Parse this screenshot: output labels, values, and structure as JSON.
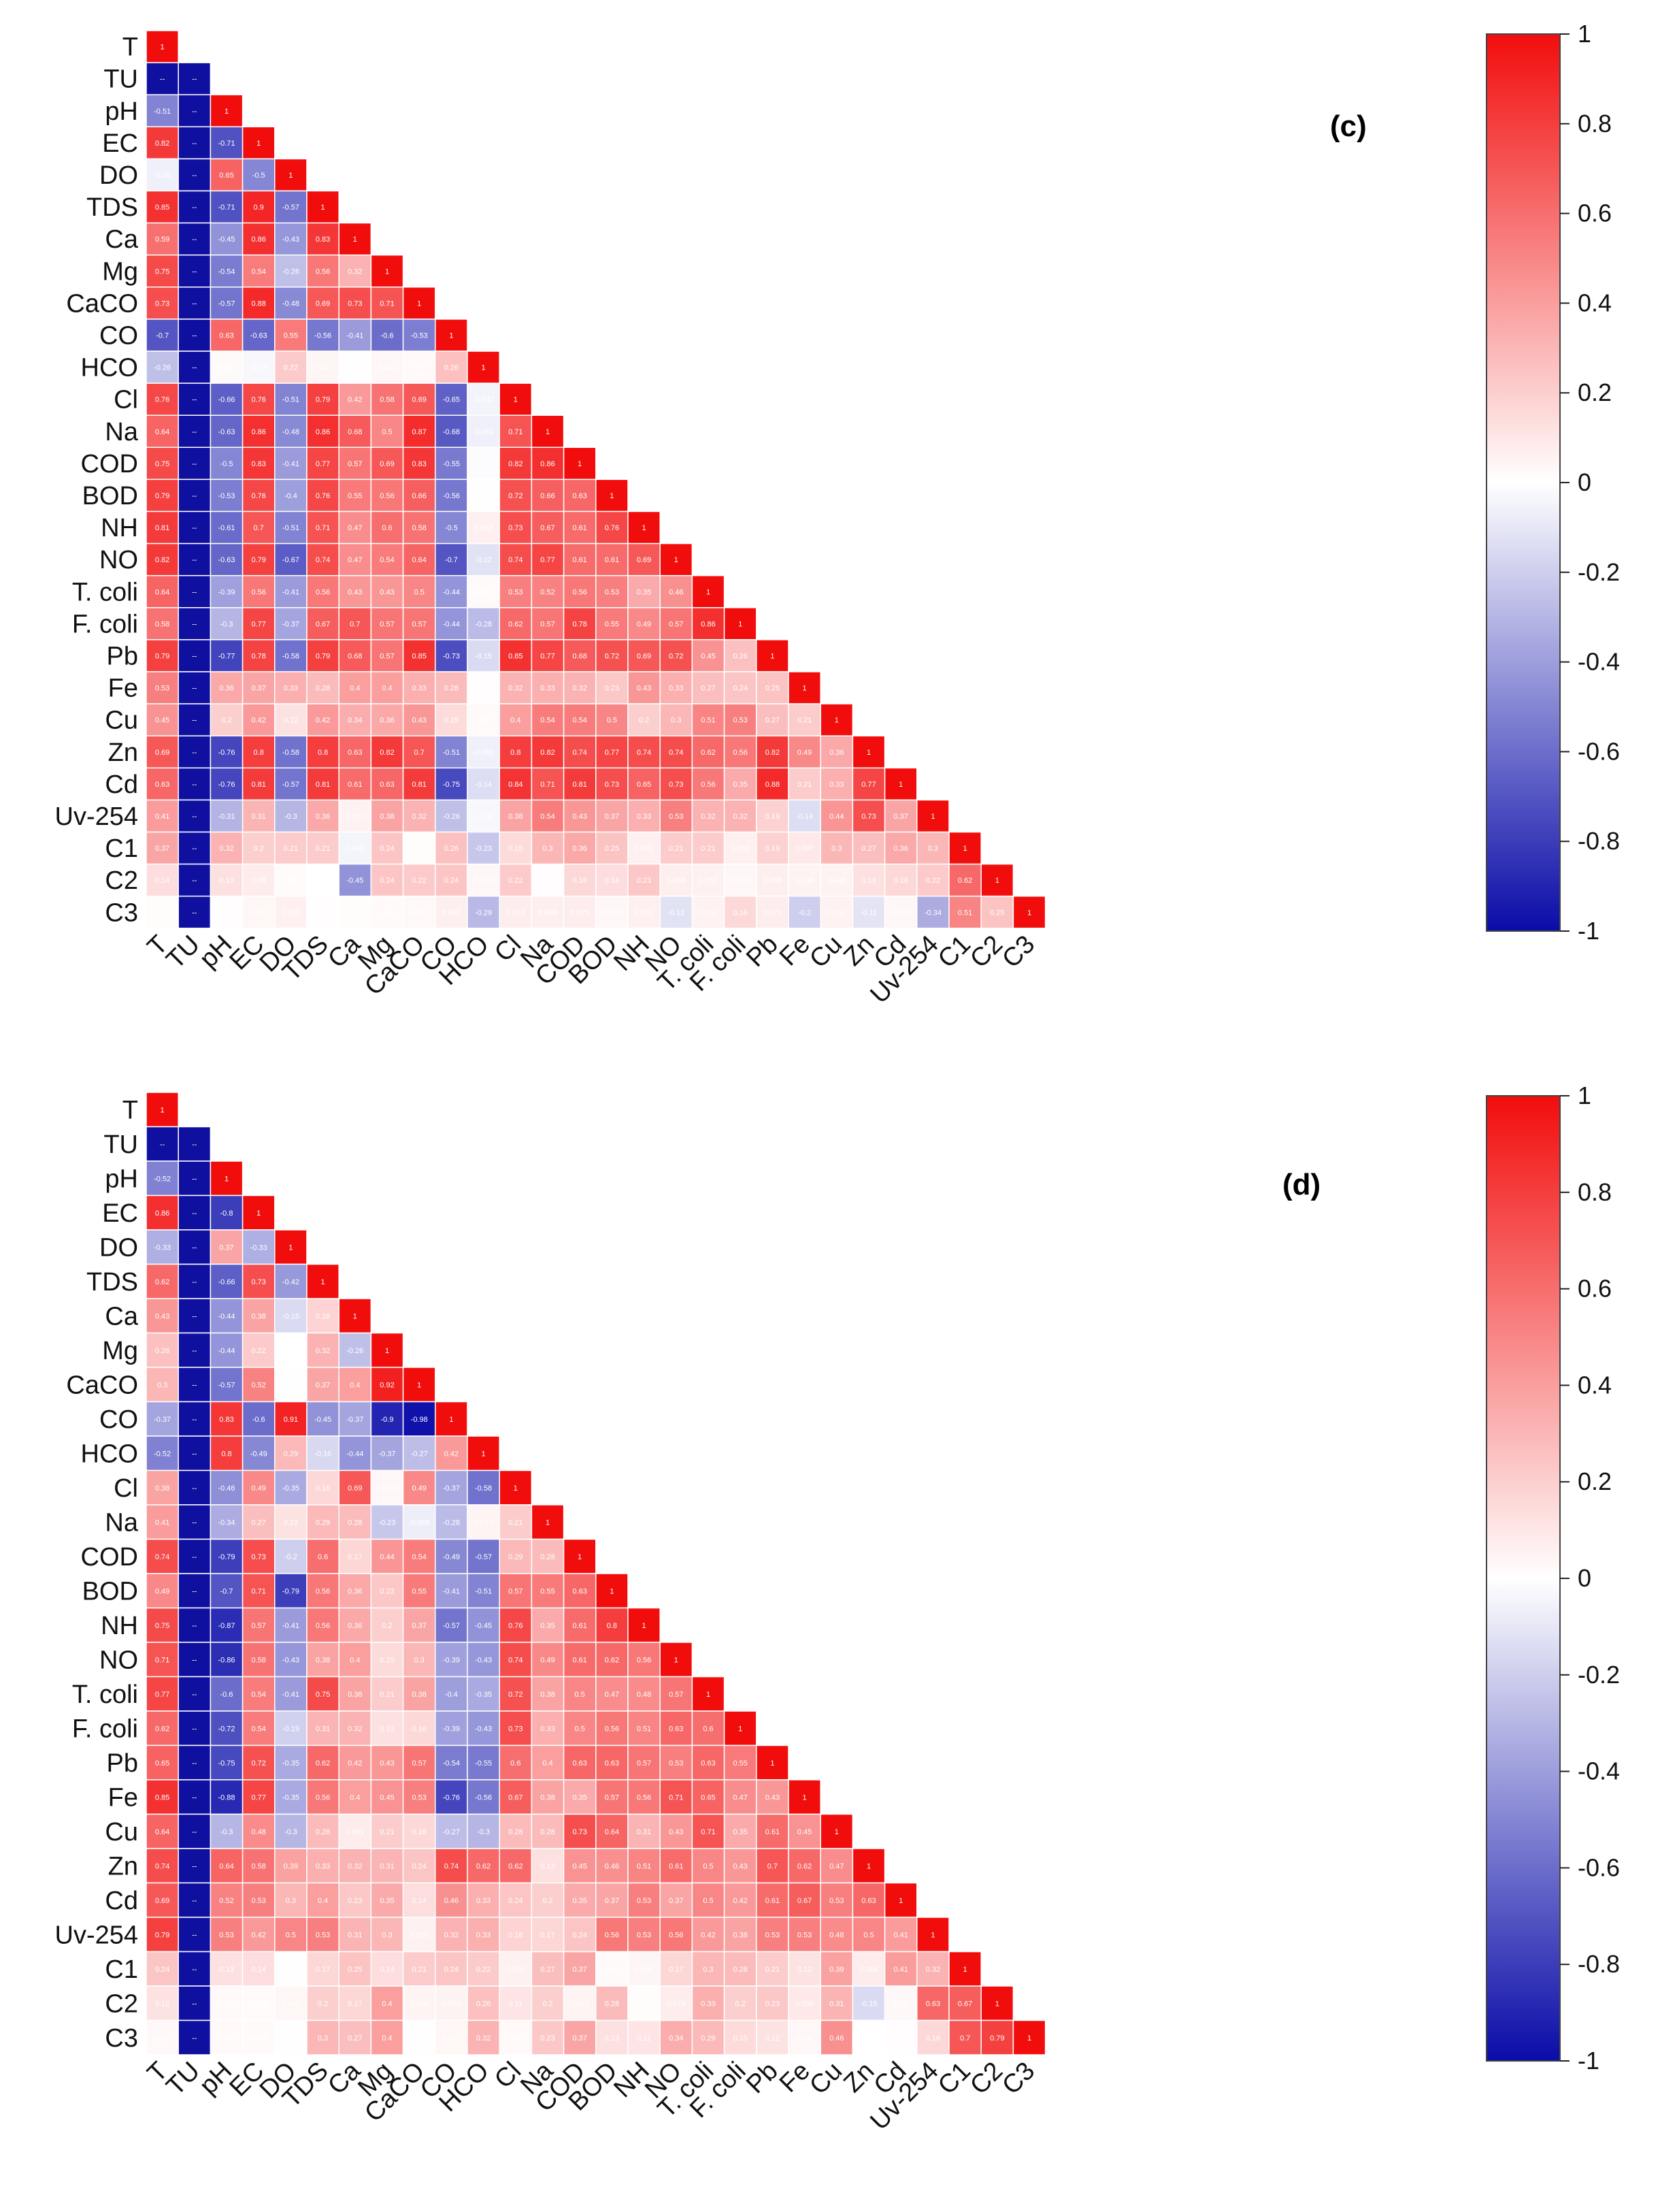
{
  "chart_data": [
    {
      "type": "heatmap",
      "title": "(c)",
      "matrix": "lower-triangular correlation",
      "variables": [
        "T",
        "TU",
        "pH",
        "EC",
        "DO",
        "TDS",
        "Ca",
        "Mg",
        "CaCO",
        "CO",
        "HCO",
        "Cl",
        "Na",
        "COD",
        "BOD",
        "NH",
        "NO",
        "T. coli",
        "F. coli",
        "Pb",
        "Fe",
        "Cu",
        "Zn",
        "Cd",
        "Uv-254",
        "C1",
        "C2",
        "C3"
      ],
      "x_tick_labels": [
        "T",
        "TU",
        "pH",
        "EC",
        "DO",
        "TDS",
        "Ca",
        "Mg",
        "CaCO",
        "CO",
        "HCO",
        "Cl",
        "Na",
        "COD",
        "BOD",
        "NH",
        "NO",
        "T. coli",
        "F. coli",
        "Pb",
        "Fe",
        "Cu",
        "Zn",
        "Cd",
        "Uv-254",
        "C1",
        "C2",
        "C3"
      ],
      "values": [
        [
          1
        ],
        [
          null,
          null
        ],
        [
          -0.51,
          null,
          1
        ],
        [
          0.82,
          null,
          -0.71,
          1
        ],
        [
          -0.06,
          null,
          0.65,
          -0.5,
          1
        ],
        [
          0.85,
          null,
          -0.71,
          0.9,
          -0.57,
          1
        ],
        [
          0.59,
          null,
          -0.45,
          0.86,
          -0.43,
          0.83,
          1
        ],
        [
          0.75,
          null,
          -0.54,
          0.54,
          -0.26,
          0.56,
          0.32,
          1
        ],
        [
          0.73,
          null,
          -0.57,
          0.88,
          -0.48,
          0.69,
          0.73,
          0.71,
          1
        ],
        [
          -0.7,
          null,
          0.63,
          -0.63,
          0.55,
          -0.56,
          -0.41,
          -0.6,
          -0.53,
          1
        ],
        [
          -0.26,
          null,
          0.02,
          -0.03,
          0.22,
          0.042,
          0.006,
          0.032,
          0.024,
          0.26,
          1
        ],
        [
          0.76,
          null,
          -0.66,
          0.76,
          -0.51,
          0.79,
          0.42,
          0.58,
          0.69,
          -0.65,
          -0.047,
          1
        ],
        [
          0.64,
          null,
          -0.63,
          0.86,
          -0.48,
          0.86,
          0.68,
          0.5,
          0.87,
          -0.68,
          -0.061,
          0.71,
          1
        ],
        [
          0.75,
          null,
          -0.5,
          0.83,
          -0.41,
          0.77,
          0.57,
          0.69,
          0.83,
          -0.55,
          -0.011,
          0.82,
          0.86,
          1
        ],
        [
          0.79,
          null,
          -0.53,
          0.76,
          -0.4,
          0.76,
          0.55,
          0.56,
          0.66,
          -0.56,
          0.003,
          0.72,
          0.66,
          0.63,
          1
        ],
        [
          0.81,
          null,
          -0.61,
          0.7,
          -0.51,
          0.71,
          0.47,
          0.6,
          0.58,
          -0.5,
          0.063,
          0.73,
          0.67,
          0.61,
          0.76,
          1
        ],
        [
          0.82,
          null,
          -0.63,
          0.79,
          -0.67,
          0.74,
          0.47,
          0.54,
          0.64,
          -0.7,
          -0.12,
          0.74,
          0.77,
          0.61,
          0.61,
          0.69,
          1
        ],
        [
          0.64,
          null,
          -0.39,
          0.56,
          -0.41,
          0.56,
          0.43,
          0.43,
          0.5,
          -0.44,
          0.021,
          0.53,
          0.52,
          0.56,
          0.53,
          0.35,
          0.46,
          1
        ],
        [
          0.58,
          null,
          -0.3,
          0.77,
          -0.37,
          0.67,
          0.7,
          0.57,
          0.57,
          -0.44,
          -0.28,
          0.62,
          0.57,
          0.78,
          0.55,
          0.49,
          0.57,
          0.86,
          1
        ],
        [
          0.79,
          null,
          -0.77,
          0.78,
          -0.58,
          0.79,
          0.68,
          0.57,
          0.85,
          -0.73,
          -0.15,
          0.85,
          0.77,
          0.68,
          0.72,
          0.69,
          0.72,
          0.45,
          0.26,
          1
        ],
        [
          0.53,
          null,
          0.36,
          0.37,
          0.33,
          0.28,
          0.4,
          0.4,
          0.33,
          0.28,
          0.009,
          0.32,
          0.33,
          0.32,
          0.23,
          0.43,
          0.33,
          0.27,
          0.24,
          0.25,
          1
        ],
        [
          0.45,
          null,
          0.2,
          0.42,
          0.12,
          0.42,
          0.34,
          0.36,
          0.43,
          0.15,
          0.025,
          0.4,
          0.54,
          0.54,
          0.5,
          0.2,
          0.3,
          0.51,
          0.53,
          0.27,
          0.21,
          1
        ],
        [
          0.69,
          null,
          -0.76,
          0.8,
          -0.58,
          0.8,
          0.63,
          0.82,
          0.7,
          -0.51,
          -0.062,
          0.8,
          0.82,
          0.74,
          0.77,
          0.74,
          0.74,
          0.62,
          0.56,
          0.82,
          0.49,
          0.36,
          1
        ],
        [
          0.63,
          null,
          -0.76,
          0.81,
          -0.57,
          0.81,
          0.61,
          0.63,
          0.81,
          -0.75,
          -0.14,
          0.84,
          0.71,
          0.81,
          0.73,
          0.65,
          0.73,
          0.56,
          0.35,
          0.88,
          0.21,
          0.33,
          0.77,
          1
        ],
        [
          0.41,
          null,
          -0.31,
          0.31,
          -0.3,
          0.36,
          0.053,
          0.38,
          0.32,
          -0.26,
          -0.03,
          0.38,
          0.54,
          0.43,
          0.37,
          0.33,
          0.53,
          0.32,
          0.32,
          0.19,
          -0.14,
          0.44,
          0.73,
          0.37,
          1
        ],
        [
          0.37,
          null,
          0.32,
          0.2,
          0.21,
          0.21,
          -0.045,
          0.24,
          0.013,
          0.26,
          -0.23,
          0.15,
          0.3,
          0.36,
          0.25,
          0.061,
          0.21,
          0.21,
          0.063,
          0.19,
          0.097,
          0.3,
          0.27,
          0.36,
          0.3,
          1
        ],
        [
          0.14,
          null,
          0.13,
          0.08,
          0.016,
          0.002,
          -0.45,
          0.24,
          0.22,
          0.24,
          0.034,
          0.22,
          0.007,
          0.16,
          0.14,
          0.23,
          0.066,
          0.056,
          0.031,
          0.068,
          0.048,
          0.048,
          0.13,
          0.16,
          0.22,
          0.62,
          1
        ],
        [
          0.014,
          null,
          0.01,
          0.037,
          0.063,
          0.007,
          0.012,
          0.024,
          0.03,
          0.067,
          -0.29,
          0.074,
          0.066,
          0.075,
          0.032,
          0.061,
          -0.12,
          0.054,
          0.16,
          0.073,
          -0.2,
          0.052,
          -0.11,
          0.034,
          -0.34,
          0.51,
          0.25,
          1
        ]
      ],
      "diagonal": 1,
      "colorbar": {
        "range": [
          -1,
          1
        ],
        "ticks": [
          "1",
          "0.8",
          "0.6",
          "0.4",
          "0.2",
          "0",
          "-0.2",
          "-0.4",
          "-0.6",
          "-0.8",
          "-1"
        ],
        "low_color": "#0a0ca8",
        "mid_color": "#ffffff",
        "high_color": "#f20d0d"
      }
    },
    {
      "type": "heatmap",
      "title": "(d)",
      "matrix": "lower-triangular correlation",
      "variables": [
        "T",
        "TU",
        "pH",
        "EC",
        "DO",
        "TDS",
        "Ca",
        "Mg",
        "CaCO",
        "CO",
        "HCO",
        "Cl",
        "Na",
        "COD",
        "BOD",
        "NH",
        "NO",
        "T. coli",
        "F. coli",
        "Pb",
        "Fe",
        "Cu",
        "Zn",
        "Cd",
        "Uv-254",
        "C1",
        "C2",
        "C3"
      ],
      "x_tick_labels": [
        "T",
        "TU",
        "pH",
        "EC",
        "DO",
        "TDS",
        "Ca",
        "Mg",
        "CaCO",
        "CO",
        "HCO",
        "Cl",
        "Na",
        "COD",
        "BOD",
        "NH",
        "NO",
        "T. coli",
        "F. coli",
        "Pb",
        "Fe",
        "Cu",
        "Zn",
        "Cd",
        "Uv-254",
        "C1",
        "C2",
        "C3"
      ],
      "values": [
        [
          1
        ],
        [
          null,
          null
        ],
        [
          -0.52,
          null,
          1
        ],
        [
          0.86,
          null,
          -0.8,
          1
        ],
        [
          -0.33,
          null,
          0.37,
          -0.33,
          1
        ],
        [
          0.62,
          null,
          -0.66,
          0.73,
          -0.42,
          1
        ],
        [
          0.43,
          null,
          -0.44,
          0.38,
          -0.15,
          0.18,
          1
        ],
        [
          0.26,
          null,
          -0.44,
          0.22,
          -0.001,
          0.32,
          -0.26,
          1
        ],
        [
          0.3,
          null,
          -0.57,
          0.52,
          -0.006,
          0.37,
          0.4,
          0.92,
          1
        ],
        [
          -0.37,
          null,
          0.83,
          -0.6,
          0.91,
          -0.45,
          -0.37,
          -0.9,
          -0.98,
          1
        ],
        [
          -0.52,
          null,
          0.8,
          -0.49,
          0.29,
          -0.16,
          -0.44,
          -0.37,
          -0.27,
          0.42,
          1
        ],
        [
          0.38,
          null,
          -0.46,
          0.49,
          -0.35,
          0.16,
          0.69,
          0.034,
          0.49,
          -0.37,
          -0.58,
          1
        ],
        [
          0.41,
          null,
          -0.34,
          0.27,
          0.12,
          0.29,
          0.28,
          -0.23,
          -0.069,
          -0.28,
          0.047,
          0.21,
          1
        ],
        [
          0.74,
          null,
          -0.79,
          0.73,
          -0.2,
          0.6,
          0.17,
          0.44,
          0.54,
          -0.49,
          -0.57,
          0.29,
          0.28,
          1
        ],
        [
          0.49,
          null,
          -0.7,
          0.71,
          -0.79,
          0.56,
          0.36,
          0.23,
          0.55,
          -0.41,
          -0.51,
          0.57,
          0.55,
          0.63,
          1
        ],
        [
          0.75,
          null,
          -0.87,
          0.57,
          -0.41,
          0.56,
          0.36,
          0.2,
          0.37,
          -0.57,
          -0.45,
          0.76,
          0.35,
          0.61,
          0.8,
          1
        ],
        [
          0.71,
          null,
          -0.86,
          0.58,
          -0.43,
          0.38,
          0.4,
          0.15,
          0.3,
          -0.39,
          -0.43,
          0.74,
          0.49,
          0.61,
          0.62,
          0.56,
          1
        ],
        [
          0.77,
          null,
          -0.6,
          0.54,
          -0.41,
          0.75,
          0.38,
          0.21,
          0.38,
          -0.4,
          -0.35,
          0.72,
          0.38,
          0.5,
          0.47,
          0.48,
          0.57,
          1
        ],
        [
          0.62,
          null,
          -0.72,
          0.54,
          -0.19,
          0.31,
          0.32,
          0.13,
          0.16,
          -0.39,
          -0.43,
          0.73,
          0.33,
          0.5,
          0.56,
          0.51,
          0.63,
          0.6,
          1
        ],
        [
          0.65,
          null,
          -0.75,
          0.72,
          -0.35,
          0.62,
          0.42,
          0.43,
          0.57,
          -0.54,
          -0.55,
          0.6,
          0.4,
          0.63,
          0.63,
          0.57,
          0.53,
          0.63,
          0.55,
          1
        ],
        [
          0.85,
          null,
          -0.88,
          0.77,
          -0.35,
          0.56,
          0.4,
          0.45,
          0.53,
          -0.76,
          -0.56,
          0.67,
          0.38,
          0.35,
          0.57,
          0.56,
          0.71,
          0.65,
          0.47,
          0.43,
          1
        ],
        [
          0.64,
          null,
          -0.3,
          0.48,
          -0.3,
          0.28,
          0.081,
          0.21,
          0.16,
          -0.27,
          -0.3,
          0.28,
          0.28,
          0.73,
          0.64,
          0.31,
          0.43,
          0.71,
          0.35,
          0.61,
          0.45,
          1
        ],
        [
          0.74,
          null,
          0.64,
          0.58,
          0.39,
          0.33,
          0.32,
          0.31,
          0.24,
          0.74,
          0.62,
          0.62,
          0.13,
          0.45,
          0.46,
          0.51,
          0.61,
          0.5,
          0.43,
          0.7,
          0.62,
          0.47,
          1
        ],
        [
          0.69,
          null,
          0.52,
          0.53,
          0.3,
          0.4,
          0.23,
          0.35,
          0.14,
          0.46,
          0.33,
          0.24,
          0.2,
          0.35,
          0.37,
          0.53,
          0.37,
          0.5,
          0.42,
          0.61,
          0.67,
          0.53,
          0.63,
          1
        ],
        [
          0.79,
          null,
          0.53,
          0.42,
          0.5,
          0.53,
          0.31,
          0.3,
          0.056,
          0.32,
          0.33,
          0.18,
          0.17,
          0.24,
          0.56,
          0.53,
          0.56,
          0.42,
          0.38,
          0.53,
          0.53,
          0.48,
          0.5,
          0.41,
          1
        ],
        [
          0.24,
          null,
          0.13,
          0.14,
          0.004,
          0.17,
          0.25,
          0.14,
          0.21,
          0.24,
          0.22,
          0.056,
          0.27,
          0.37,
          0.02,
          0.039,
          0.17,
          0.3,
          0.28,
          0.21,
          0.12,
          0.39,
          0.084,
          0.41,
          0.32,
          1
        ],
        [
          0.12,
          null,
          0.025,
          0.016,
          0.036,
          0.2,
          0.17,
          0.4,
          0.046,
          0.049,
          0.26,
          0.11,
          0.2,
          0.047,
          0.28,
          0.012,
          0.073,
          0.33,
          0.2,
          0.23,
          0.096,
          0.31,
          -0.15,
          0.03,
          0.63,
          0.67,
          1
        ],
        [
          0.03,
          null,
          0.024,
          0.022,
          0.006,
          0.3,
          0.27,
          0.4,
          0.006,
          0.037,
          0.32,
          0.024,
          0.23,
          0.37,
          0.13,
          0.11,
          0.34,
          0.29,
          0.15,
          0.12,
          0.032,
          0.46,
          0.002,
          0.009,
          0.16,
          0.7,
          0.79,
          1
        ]
      ],
      "diagonal": 1,
      "colorbar": {
        "range": [
          -1,
          1
        ],
        "ticks": [
          "1",
          "0.8",
          "0.6",
          "0.4",
          "0.2",
          "0",
          "-0.2",
          "-0.4",
          "-0.6",
          "-0.8",
          "-1"
        ],
        "low_color": "#0a0ca8",
        "mid_color": "#ffffff",
        "high_color": "#f20d0d"
      }
    }
  ]
}
